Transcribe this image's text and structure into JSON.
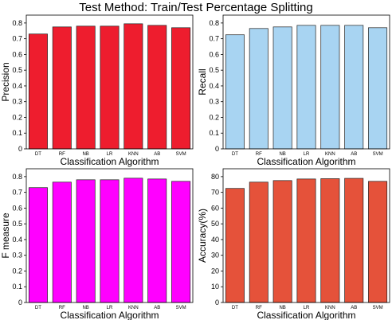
{
  "figure": {
    "title": "Test Method: Train/Test Percentage Splitting"
  },
  "chart_data": [
    {
      "type": "bar",
      "categories": [
        "DT",
        "RF",
        "NB",
        "LR",
        "KNN",
        "AB",
        "SVM"
      ],
      "values": [
        0.73,
        0.775,
        0.78,
        0.78,
        0.795,
        0.785,
        0.77
      ],
      "xlabel": "Classification Algorithm",
      "ylabel": "Precision",
      "ylim": [
        0,
        0.85
      ],
      "yticks": [
        "0",
        "0.1",
        "0.2",
        "0.3",
        "0.4",
        "0.5",
        "0.6",
        "0.7",
        "0.8"
      ],
      "color": "#ee1d2e",
      "grid": false
    },
    {
      "type": "bar",
      "categories": [
        "DT",
        "RF",
        "NB",
        "LR",
        "KNN",
        "AB",
        "SVM"
      ],
      "values": [
        0.725,
        0.765,
        0.775,
        0.785,
        0.785,
        0.785,
        0.77
      ],
      "xlabel": "Classification Algorithm",
      "ylabel": "Recall",
      "ylim": [
        0,
        0.85
      ],
      "yticks": [
        "0",
        "0.1",
        "0.2",
        "0.3",
        "0.4",
        "0.5",
        "0.6",
        "0.7",
        "0.8"
      ],
      "color": "#a8d4f2",
      "grid": false
    },
    {
      "type": "bar",
      "categories": [
        "DT",
        "RF",
        "NB",
        "LR",
        "KNN",
        "AB",
        "SVM"
      ],
      "values": [
        0.73,
        0.765,
        0.78,
        0.78,
        0.79,
        0.785,
        0.77
      ],
      "xlabel": "Classification Algorithm",
      "ylabel": "F measure",
      "ylim": [
        0,
        0.85
      ],
      "yticks": [
        "0",
        "0.1",
        "0.2",
        "0.3",
        "0.4",
        "0.5",
        "0.6",
        "0.7",
        "0.8"
      ],
      "color": "#ff00ff",
      "grid": false
    },
    {
      "type": "bar",
      "categories": [
        "DT",
        "RF",
        "NB",
        "LR",
        "KNN",
        "AB",
        "SVM"
      ],
      "values": [
        72.5,
        76.5,
        77.5,
        78.5,
        78.7,
        78.9,
        77
      ],
      "xlabel": "Classification Algorithm",
      "ylabel": "Accuracy(%)",
      "ylim": [
        0,
        85
      ],
      "yticks": [
        "0",
        "10",
        "20",
        "30",
        "40",
        "50",
        "60",
        "70",
        "80"
      ],
      "color": "#e5523a",
      "grid": false
    }
  ]
}
